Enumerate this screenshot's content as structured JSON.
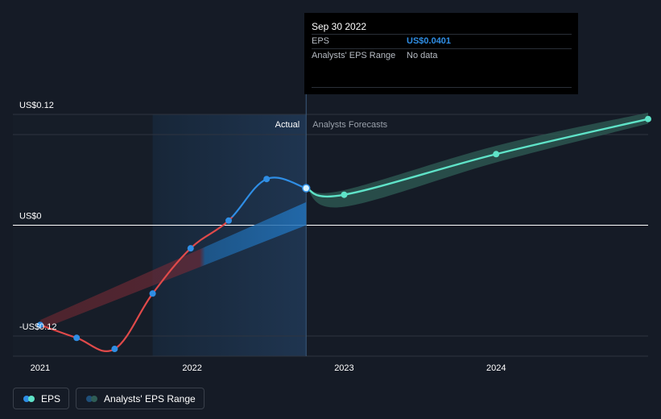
{
  "tooltip": {
    "date": "Sep 30 2022",
    "eps_label": "EPS",
    "eps_value": "US$0.0401",
    "range_label": "Analysts' EPS Range",
    "range_value": "No data"
  },
  "labels": {
    "actual": "Actual",
    "forecast": "Analysts Forecasts"
  },
  "legend": {
    "eps": "EPS",
    "range": "Analysts' EPS Range"
  },
  "colors": {
    "background": "#151b26",
    "eps_positive": "#2f8ee5",
    "eps_negative": "#e04a4a",
    "forecast": "#5fe3c8",
    "forecast_band": "#2f5d56",
    "past_shade": "#1f3550"
  },
  "chart_data": {
    "type": "line",
    "x_ticks": [
      {
        "label": "2021",
        "value": 2021.0
      },
      {
        "label": "2022",
        "value": 2022.0
      },
      {
        "label": "2023",
        "value": 2023.0
      },
      {
        "label": "2024",
        "value": 2024.0
      }
    ],
    "y_ticks": [
      {
        "label": "US$0.12",
        "value": 0.12
      },
      {
        "label": "US$0",
        "value": 0
      },
      {
        "label": "-US$0.12",
        "value": -0.12
      }
    ],
    "xlim": [
      2020.99,
      2025.0
    ],
    "ylim": [
      -0.12,
      0.12
    ],
    "actual_divider": 2022.75,
    "past_shade_start": 2021.74,
    "series": [
      {
        "name": "EPS",
        "kind": "actual",
        "points": [
          {
            "x": 2021.0,
            "y": -0.108
          },
          {
            "x": 2021.24,
            "y": -0.122
          },
          {
            "x": 2021.49,
            "y": -0.134
          },
          {
            "x": 2021.74,
            "y": -0.074
          },
          {
            "x": 2021.99,
            "y": -0.025
          },
          {
            "x": 2022.24,
            "y": 0.005
          },
          {
            "x": 2022.49,
            "y": 0.05
          },
          {
            "x": 2022.75,
            "y": 0.0401
          }
        ]
      },
      {
        "name": "Analysts Forecasts",
        "kind": "forecast",
        "points": [
          {
            "x": 2022.75,
            "y": 0.0401
          },
          {
            "x": 2023.0,
            "y": 0.033
          },
          {
            "x": 2024.0,
            "y": 0.077
          },
          {
            "x": 2025.0,
            "y": 0.115
          }
        ],
        "range": [
          {
            "x": 2022.75,
            "low": 0.0401,
            "high": 0.0401
          },
          {
            "x": 2023.0,
            "low": 0.02,
            "high": 0.038
          },
          {
            "x": 2024.0,
            "low": 0.068,
            "high": 0.086
          },
          {
            "x": 2025.0,
            "low": 0.11,
            "high": 0.122
          }
        ]
      }
    ],
    "historical_range_band": {
      "start": {
        "x": 2021.0,
        "low": -0.108,
        "high": -0.108
      },
      "end": {
        "x": 2022.75,
        "low": 0.0,
        "high": 0.025
      }
    },
    "grid": true,
    "legend_position": "bottom-left"
  }
}
